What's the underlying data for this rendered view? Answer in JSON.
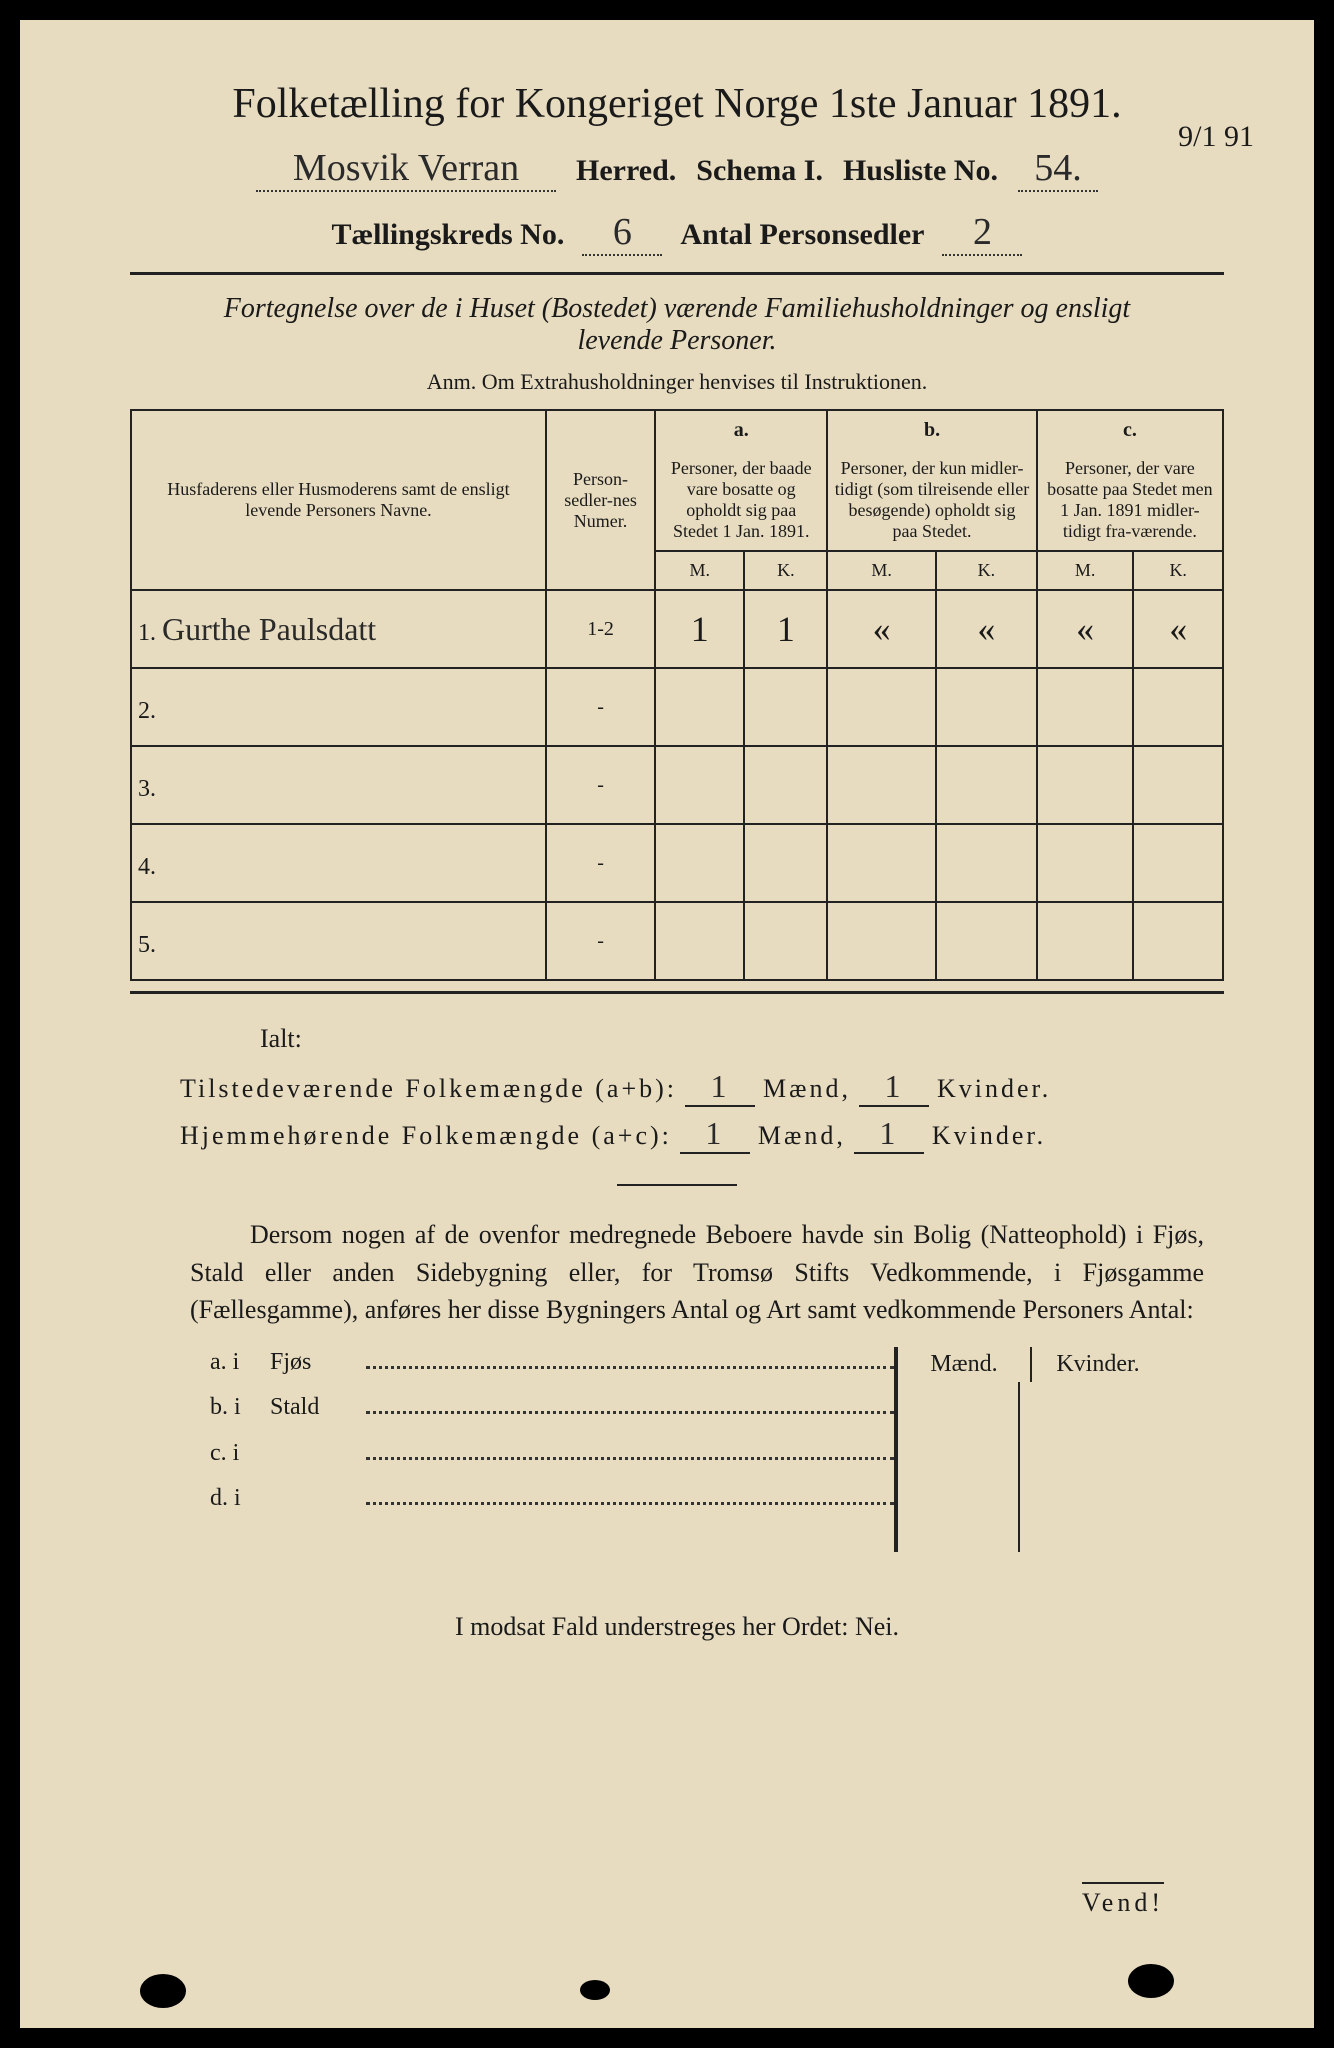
{
  "title": "Folketælling for Kongeriget Norge 1ste Januar 1891.",
  "herred_handwritten": "Mosvik Verran",
  "herred_label": "Herred.",
  "schema_label": "Schema I.",
  "husliste_label": "Husliste No.",
  "husliste_no": "54.",
  "margin_date": "9/1 91",
  "kreds_label": "Tællingskreds No.",
  "kreds_no": "6",
  "antal_label": "Antal Personsedler",
  "antal_no": "2",
  "sub_title_1": "Fortegnelse over de i Huset (Bostedet) værende Familiehusholdninger og ensligt",
  "sub_title_2": "levende Personer.",
  "anm": "Anm.  Om Extrahusholdninger henvises til Instruktionen.",
  "headers": {
    "name": "Husfaderens eller Husmoderens samt de ensligt levende Personers Navne.",
    "numer": "Person-sedler-nes Numer.",
    "a_letter": "a.",
    "a_text": "Personer, der baade vare bosatte og opholdt sig paa Stedet 1 Jan. 1891.",
    "b_letter": "b.",
    "b_text": "Personer, der kun midler-tidigt (som tilreisende eller besøgende) opholdt sig paa Stedet.",
    "c_letter": "c.",
    "c_text": "Personer, der vare bosatte paa Stedet men 1 Jan. 1891 midler-tidigt fra-værende.",
    "m": "M.",
    "k": "K."
  },
  "rows": [
    {
      "num": "1.",
      "name": "Gurthe Paulsdatt",
      "numer": "1-2",
      "am": "1",
      "ak": "1",
      "bm": "«",
      "bk": "«",
      "cm": "«",
      "ck": "«"
    },
    {
      "num": "2.",
      "name": "",
      "numer": "-",
      "am": "",
      "ak": "",
      "bm": "",
      "bk": "",
      "cm": "",
      "ck": ""
    },
    {
      "num": "3.",
      "name": "",
      "numer": "-",
      "am": "",
      "ak": "",
      "bm": "",
      "bk": "",
      "cm": "",
      "ck": ""
    },
    {
      "num": "4.",
      "name": "",
      "numer": "-",
      "am": "",
      "ak": "",
      "bm": "",
      "bk": "",
      "cm": "",
      "ck": ""
    },
    {
      "num": "5.",
      "name": "",
      "numer": "-",
      "am": "",
      "ak": "",
      "bm": "",
      "bk": "",
      "cm": "",
      "ck": ""
    }
  ],
  "ialt": "Ialt:",
  "sum1_label": "Tilstedeværende Folkemængde (a+b):",
  "sum2_label": "Hjemmehørende Folkemængde (a+c):",
  "maend": "Mænd,",
  "kvinder": "Kvinder.",
  "sum1_m": "1",
  "sum1_k": "1",
  "sum2_m": "1",
  "sum2_k": "1",
  "body_para": "Dersom nogen af de ovenfor medregnede Beboere havde sin Bolig (Natteophold) i Fjøs, Stald eller anden Sidebygning eller, for Tromsø Stifts Vedkommende, i Fjøsgamme (Fællesgamme), anføres her disse Bygningers Antal og Art samt vedkommende Personers Antal:",
  "sidebld": {
    "mk_maend": "Mænd.",
    "mk_kvinder": "Kvinder.",
    "items": [
      {
        "label": "a. i",
        "name": "Fjøs"
      },
      {
        "label": "b. i",
        "name": "Stald"
      },
      {
        "label": "c. i",
        "name": ""
      },
      {
        "label": "d. i",
        "name": ""
      }
    ]
  },
  "note": "I modsat Fald understreges her Ordet: Nei.",
  "nei_underline": "Nei",
  "vend": "Vend!",
  "colors": {
    "paper": "#e8dcc0",
    "ink": "#1a1a1a",
    "frame": "#000000"
  }
}
